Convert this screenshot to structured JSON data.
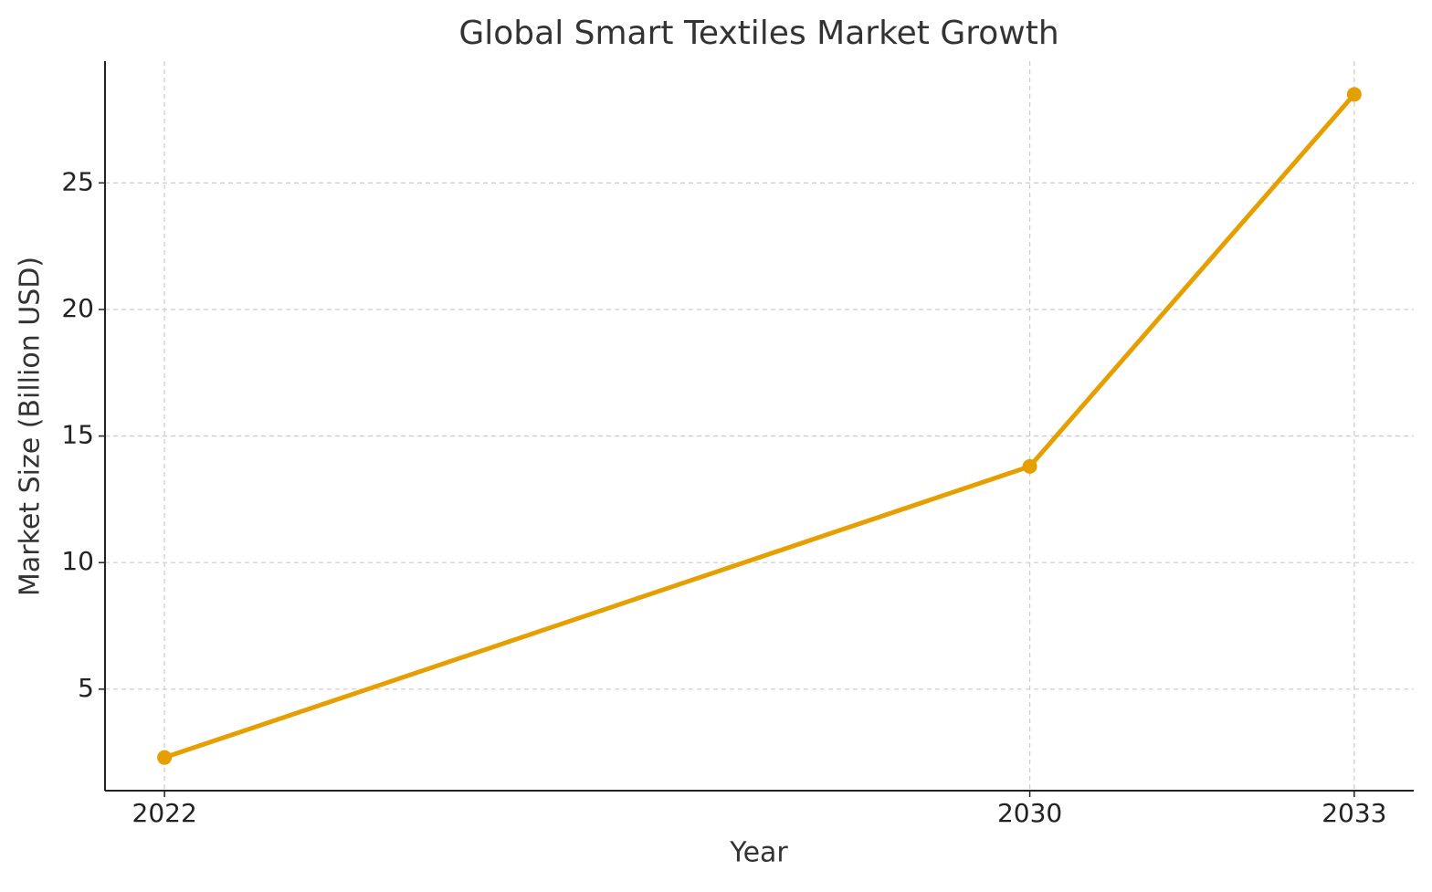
{
  "chart_data": {
    "type": "line",
    "title": "Global Smart Textiles Market Growth",
    "x_label": "Year",
    "y_label": "Market Size (Billion USD)",
    "x": [
      2022,
      2030,
      2033
    ],
    "series": [
      {
        "name": "Market Size",
        "color": "#e69f00",
        "values": [
          2.3,
          13.8,
          28.5
        ]
      }
    ],
    "xlim": [
      2021.45,
      2033.55
    ],
    "xticks": [
      2022,
      2030,
      2033
    ],
    "ylim": [
      0.99,
      29.81
    ],
    "yticks": [
      5,
      10,
      15,
      20,
      25
    ],
    "grid": true,
    "markers": true
  }
}
